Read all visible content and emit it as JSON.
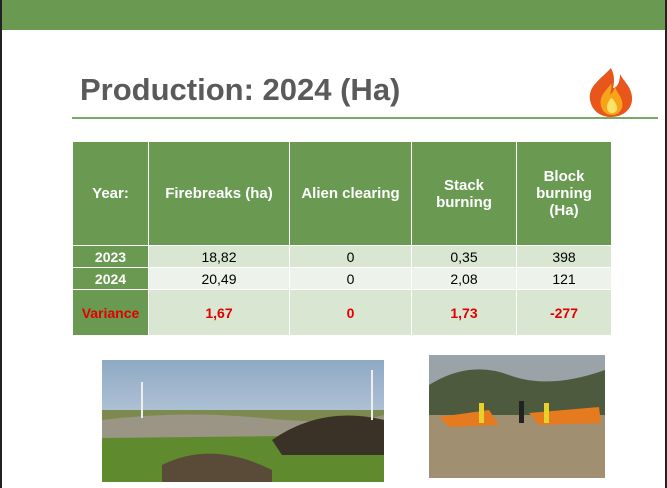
{
  "header": {
    "title": "Production: 2024 (Ha)"
  },
  "table": {
    "columns": [
      "Year:",
      "Firebreaks (ha)",
      "Alien clearing",
      "Stack burning",
      "Block burning (Ha)"
    ],
    "rows": [
      [
        "2023",
        "18,82",
        "0",
        "0,35",
        "398"
      ],
      [
        "2024",
        "20,49",
        "0",
        "2,08",
        "121"
      ],
      [
        "Variance",
        "1,67",
        "0",
        "1,73",
        "-277"
      ]
    ]
  }
}
